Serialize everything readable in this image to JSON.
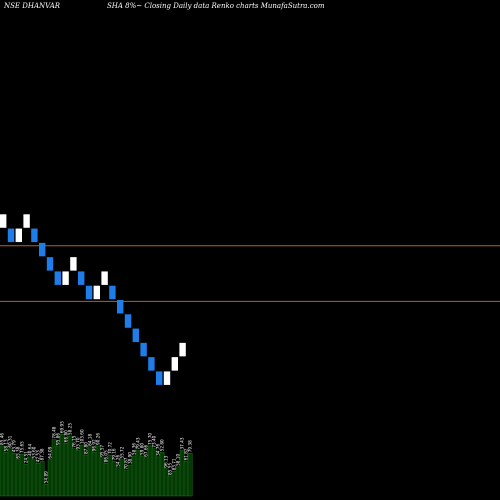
{
  "chart_data": {
    "type": "renko",
    "title_left": "NSE DHANVAR",
    "title_right": "SHA 8%~  Closing Daily data  Renko  charts MunafaSutra.com",
    "colors": {
      "background": "#000000",
      "up_brick": "#ffffff",
      "down_brick": "#1e7de8",
      "reference_line": "#b8601a",
      "volume": "#063806",
      "volume_outline": "#1c8a1c"
    },
    "reference_lines": [
      42.8,
      38.9
    ],
    "bricks": [
      {
        "dir": "up",
        "level": 44.0
      },
      {
        "dir": "down",
        "level": 43.0
      },
      {
        "dir": "up",
        "level": 43.0
      },
      {
        "dir": "up",
        "level": 44.0
      },
      {
        "dir": "down",
        "level": 43.0
      },
      {
        "dir": "down",
        "level": 42.0
      },
      {
        "dir": "down",
        "level": 41.0
      },
      {
        "dir": "down",
        "level": 40.0
      },
      {
        "dir": "up",
        "level": 40.0
      },
      {
        "dir": "up",
        "level": 41.0
      },
      {
        "dir": "down",
        "level": 40.0
      },
      {
        "dir": "down",
        "level": 39.0
      },
      {
        "dir": "up",
        "level": 39.0
      },
      {
        "dir": "up",
        "level": 40.0
      },
      {
        "dir": "down",
        "level": 39.0
      },
      {
        "dir": "down",
        "level": 38.0
      },
      {
        "dir": "down",
        "level": 37.0
      },
      {
        "dir": "down",
        "level": 36.0
      },
      {
        "dir": "down",
        "level": 35.0
      },
      {
        "dir": "down",
        "level": 34.0
      },
      {
        "dir": "down",
        "level": 33.0
      },
      {
        "dir": "up",
        "level": 33.0
      },
      {
        "dir": "up",
        "level": 34.0
      },
      {
        "dir": "up",
        "level": 35.0
      }
    ],
    "y_range": [
      25,
      60
    ],
    "volume": {
      "values": [
        55,
        48,
        52,
        47,
        40,
        46,
        35,
        43,
        40,
        36,
        38,
        13,
        40,
        62,
        55,
        68,
        58,
        66,
        52,
        50,
        56,
        45,
        54,
        48,
        55,
        42,
        36,
        45,
        38,
        31,
        40,
        28,
        34,
        44,
        50,
        44,
        42,
        55,
        52,
        43,
        48,
        30,
        22,
        27,
        32,
        50,
        38,
        47
      ],
      "labels": [
        "85.46",
        "58.13",
        "60.31",
        "43.79",
        "65.38",
        "75.65",
        "24.51",
        "40.64",
        "53.60",
        "42.53",
        "87.38",
        "54.89",
        "64.09",
        "78.48",
        "95.86",
        "69.95",
        "66.80",
        "58.25",
        "76.15",
        "93.70",
        "103.60",
        "87.80",
        "84.18",
        "96.92",
        "90.26",
        "95.57",
        "86.05",
        "70.72",
        "79.16",
        "54.26",
        "55.72",
        "70.87",
        "38.90",
        "58.36",
        "79.43",
        "59.80",
        "67.66",
        "75.70",
        "73.40",
        "34.76",
        "52.80",
        "96.13",
        "85.55",
        "83.71",
        "58.10",
        "37.43",
        "61.82",
        "79.38"
      ],
      "y_max": 100
    }
  }
}
